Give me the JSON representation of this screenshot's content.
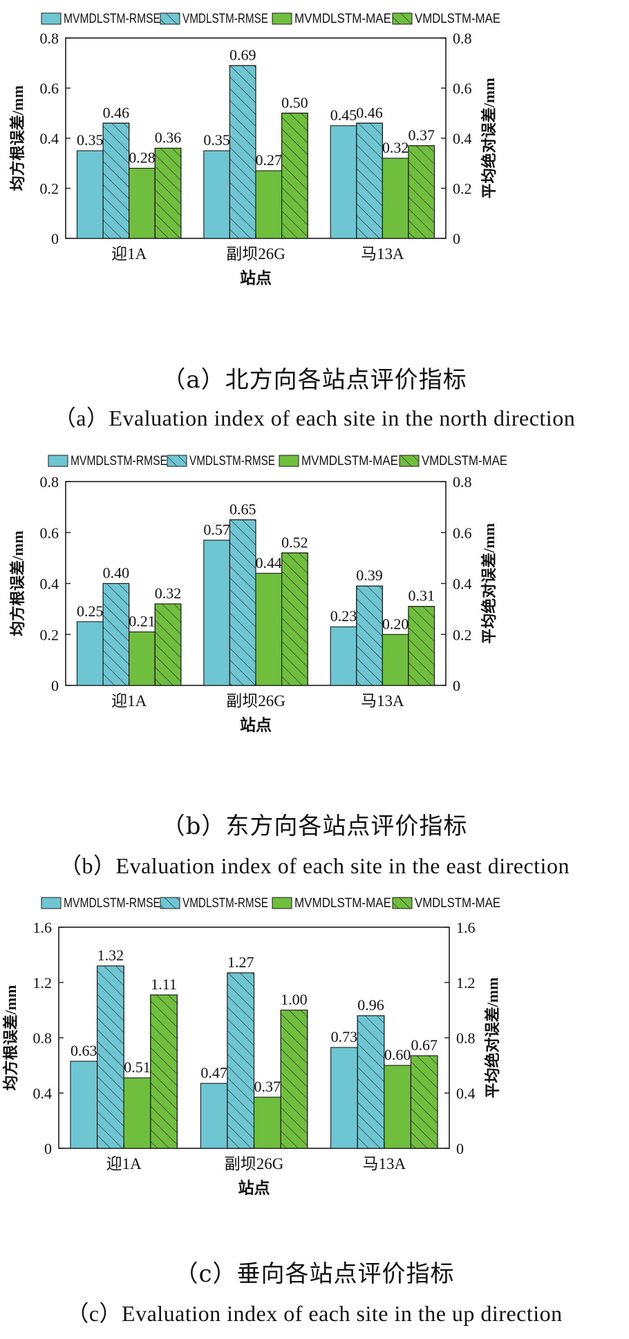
{
  "colors": {
    "cyan": "#6ec6d3",
    "green": "#6fbe3d",
    "stroke": "#1a1a1a",
    "hatch": "#2a2a2a"
  },
  "legend": [
    "MVMDLSTM-RMSE",
    "VMDLSTM-RMSE",
    "MVMDLSTM-MAE",
    "VMDLSTM-MAE"
  ],
  "chart_data": [
    {
      "type": "bar",
      "categories": [
        "迎1A",
        "副坝26G",
        "马13A"
      ],
      "series": [
        {
          "name": "MVMDLSTM-RMSE",
          "values": [
            0.35,
            0.35,
            0.45
          ],
          "labels": [
            "0.35",
            "0.35",
            "0.45"
          ]
        },
        {
          "name": "VMDLSTM-RMSE",
          "values": [
            0.46,
            0.69,
            0.46
          ],
          "labels": [
            "0.46",
            "0.69",
            "0.46"
          ]
        },
        {
          "name": "MVMDLSTM-MAE",
          "values": [
            0.28,
            0.27,
            0.32
          ],
          "labels": [
            "0.28",
            "0.27",
            "0.32"
          ]
        },
        {
          "name": "VMDLSTM-MAE",
          "values": [
            0.36,
            0.5,
            0.37
          ],
          "labels": [
            "0.36",
            "0.50",
            "0.37"
          ]
        }
      ],
      "ylim": [
        0,
        0.8
      ],
      "yticks": [
        "0",
        "0.2",
        "0.4",
        "0.6",
        "0.8"
      ],
      "xlabel": "站点",
      "ylabel_left": "均方根误差/mm",
      "ylabel_right": "平均绝对误差/mm",
      "caption_cn": "（a）北方向各站点评价指标",
      "caption_en": "（a）Evaluation index of each site in the north direction"
    },
    {
      "type": "bar",
      "categories": [
        "迎1A",
        "副坝26G",
        "马13A"
      ],
      "series": [
        {
          "name": "MVMDLSTM-RMSE",
          "values": [
            0.25,
            0.57,
            0.23
          ],
          "labels": [
            "0.25",
            "0.57",
            "0.23"
          ]
        },
        {
          "name": "VMDLSTM-RMSE",
          "values": [
            0.4,
            0.65,
            0.39
          ],
          "labels": [
            "0.40",
            "0.65",
            "0.39"
          ]
        },
        {
          "name": "MVMDLSTM-MAE",
          "values": [
            0.21,
            0.44,
            0.2
          ],
          "labels": [
            "0.21",
            "0.44",
            "0.20"
          ]
        },
        {
          "name": "VMDLSTM-MAE",
          "values": [
            0.32,
            0.52,
            0.31
          ],
          "labels": [
            "0.32",
            "0.52",
            "0.31"
          ]
        }
      ],
      "ylim": [
        0,
        0.8
      ],
      "yticks": [
        "0",
        "0.2",
        "0.4",
        "0.6",
        "0.8"
      ],
      "xlabel": "站点",
      "ylabel_left": "均方根误差/mm",
      "ylabel_right": "平均绝对误差/mm",
      "caption_cn": "（b）东方向各站点评价指标",
      "caption_en": "（b）Evaluation index of each site in the east direction"
    },
    {
      "type": "bar",
      "categories": [
        "迎1A",
        "副坝26G",
        "马13A"
      ],
      "series": [
        {
          "name": "MVMDLSTM-RMSE",
          "values": [
            0.63,
            0.47,
            0.73
          ],
          "labels": [
            "0.63",
            "0.47",
            "0.73"
          ]
        },
        {
          "name": "VMDLSTM-RMSE",
          "values": [
            1.32,
            1.27,
            0.96
          ],
          "labels": [
            "1.32",
            "1.27",
            "0.96"
          ]
        },
        {
          "name": "MVMDLSTM-MAE",
          "values": [
            0.51,
            0.37,
            0.6
          ],
          "labels": [
            "0.51",
            "0.37",
            "0.60"
          ]
        },
        {
          "name": "VMDLSTM-MAE",
          "values": [
            1.11,
            1.0,
            0.67
          ],
          "labels": [
            "1.11",
            "1.00",
            "0.67"
          ]
        }
      ],
      "ylim": [
        0,
        1.6
      ],
      "yticks": [
        "0",
        "0.4",
        "0.8",
        "1.2",
        "1.6"
      ],
      "xlabel": "站点",
      "ylabel_left": "均方根误差/mm",
      "ylabel_right": "平均绝对误差/mm",
      "caption_cn": "（c）垂向各站点评价指标",
      "caption_en": "（c）Evaluation index of each site in the up direction"
    }
  ]
}
